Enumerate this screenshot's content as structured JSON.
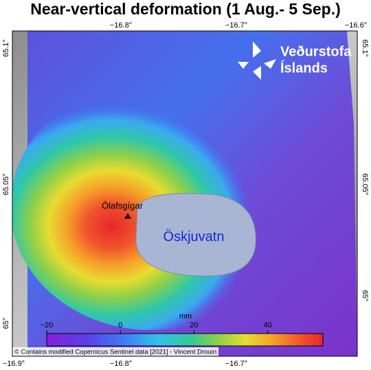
{
  "title": "Near-vertical deformation (1 Aug.- 5 Sep.)",
  "longitude_top": [
    "−16.8°",
    "−16.7°",
    "−16.6°"
  ],
  "longitude_bottom": [
    "−16.9°",
    "−16.8°",
    "−16.7°"
  ],
  "latitude_left": [
    "65.1°",
    "65.05°",
    "65°"
  ],
  "latitude_right": [
    "65.1°",
    "65.05°",
    "65°"
  ],
  "logo": [
    "Veðurstofa",
    "Íslands"
  ],
  "places": [
    "Ólafsgígar",
    "Öskjuvatn"
  ],
  "colorbar": {
    "label": "mm",
    "lim": [
      -20,
      55
    ],
    "ticks": [
      {
        "value": -20,
        "label": "−20"
      },
      {
        "value": 0,
        "label": "0"
      },
      {
        "value": 20,
        "label": "20"
      },
      {
        "value": 40,
        "label": "40"
      }
    ]
  },
  "credit": "© Contains modified Copernicus Sentinel data [2021] - Vincent Drouin"
}
